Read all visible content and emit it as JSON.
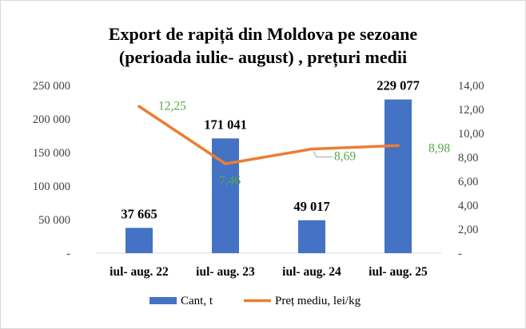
{
  "chart_data": {
    "type": "bar",
    "title_lines": [
      "Export de rapiță din  Moldova pe sezoane",
      "(perioada iulie- august) , prețuri medii"
    ],
    "categories": [
      "iul- aug. 22",
      "iul- aug. 23",
      "iul- aug. 24",
      "iul- aug. 25"
    ],
    "series": [
      {
        "name": "Cant, t",
        "type": "bar",
        "axis": "left",
        "color": "#4472c4",
        "values": [
          37665,
          171041,
          49017,
          229077
        ],
        "labels": [
          "37 665",
          "171 041",
          "49 017",
          "229 077"
        ]
      },
      {
        "name": "Preț mediu, lei/kg",
        "type": "line",
        "axis": "right",
        "color": "#ed7d31",
        "values": [
          12.25,
          7.46,
          8.69,
          8.98
        ],
        "labels": [
          "12,25",
          "7,46",
          "8,69",
          "8,98"
        ]
      }
    ],
    "left_axis": {
      "ylim": [
        0,
        250000
      ],
      "tick_values": [
        0,
        50000,
        100000,
        150000,
        200000,
        250000
      ],
      "tick_labels": [
        "-",
        "50 000",
        "100 000",
        "150 000",
        "200 000",
        "250 000"
      ]
    },
    "right_axis": {
      "ylim": [
        0,
        14
      ],
      "tick_values": [
        0,
        2,
        4,
        6,
        8,
        10,
        12,
        14
      ],
      "tick_labels": [
        "-",
        "2,00",
        "4,00",
        "6,00",
        "8,00",
        "10,00",
        "12,00",
        "14,00"
      ]
    },
    "grid": false,
    "legend": "bottom"
  }
}
